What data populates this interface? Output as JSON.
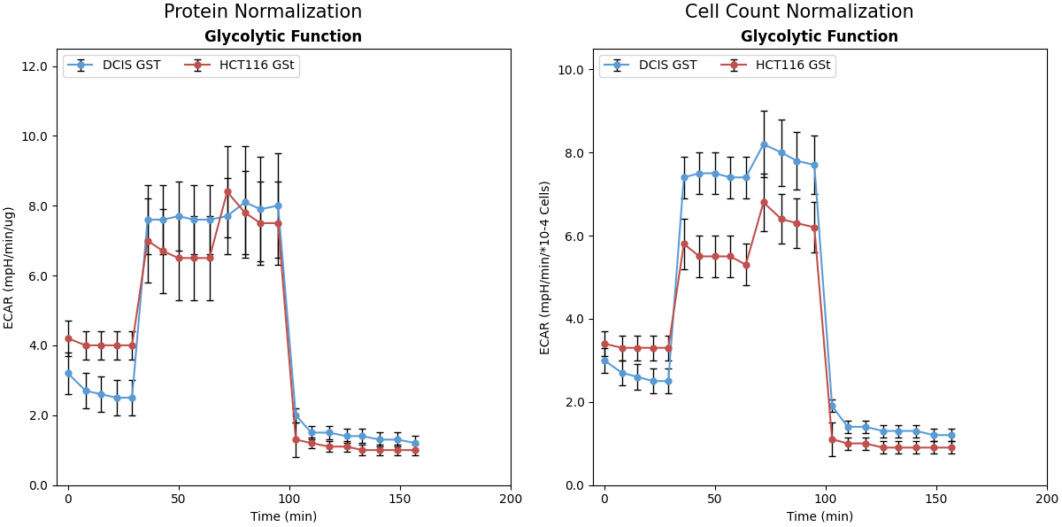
{
  "chart_data": [
    {
      "type": "line",
      "title": "Protein Normalization",
      "subtitle": "Glycolytic Function",
      "xlabel": "Time (min)",
      "ylabel": "ECAR (mpH/min/ug)",
      "x": [
        0,
        8,
        15,
        22,
        29,
        36,
        43,
        50,
        57,
        64,
        72,
        80,
        87,
        95,
        103,
        110,
        118,
        126,
        133,
        141,
        149,
        157
      ],
      "xlim": [
        -5,
        200
      ],
      "xticks": [
        0,
        50,
        100,
        150,
        200
      ],
      "ylim": [
        0,
        12.5
      ],
      "yticks": [
        {
          "value": 0,
          "label": "0.0"
        },
        {
          "value": 2,
          "label": "2.0"
        },
        {
          "value": 4,
          "label": "4.0"
        },
        {
          "value": 6,
          "label": "6.0"
        },
        {
          "value": 8,
          "label": "8.0"
        },
        {
          "value": 10,
          "label": "10.0"
        },
        {
          "value": 12,
          "label": "12.0"
        }
      ],
      "legend": "upper left",
      "series": [
        {
          "name": "DCIS GST",
          "color": "#5B9BD5",
          "marker": "o",
          "values": [
            3.2,
            2.7,
            2.6,
            2.5,
            2.5,
            7.6,
            7.6,
            7.7,
            7.6,
            7.6,
            7.7,
            8.1,
            7.9,
            8.0,
            2.0,
            1.5,
            1.5,
            1.4,
            1.4,
            1.3,
            1.3,
            1.2
          ],
          "yerr": [
            0.6,
            0.5,
            0.5,
            0.5,
            0.5,
            1.0,
            1.0,
            1.0,
            1.0,
            1.0,
            1.1,
            1.6,
            1.5,
            1.5,
            0.2,
            0.2,
            0.2,
            0.2,
            0.2,
            0.2,
            0.2,
            0.2
          ]
        },
        {
          "name": "HCT116 GSt",
          "color": "#C0504D",
          "marker": "o",
          "values": [
            4.2,
            4.0,
            4.0,
            4.0,
            4.0,
            7.0,
            6.7,
            6.5,
            6.5,
            6.5,
            8.4,
            7.8,
            7.5,
            7.5,
            1.3,
            1.2,
            1.1,
            1.1,
            1.0,
            1.0,
            1.0,
            1.0
          ],
          "yerr": [
            0.5,
            0.4,
            0.4,
            0.4,
            0.4,
            1.2,
            1.2,
            1.2,
            1.2,
            1.2,
            1.3,
            1.2,
            1.2,
            1.2,
            0.5,
            0.15,
            0.15,
            0.15,
            0.15,
            0.15,
            0.15,
            0.15
          ]
        }
      ]
    },
    {
      "type": "line",
      "title": "Cell Count Normalization",
      "subtitle": "Glycolytic Function",
      "xlabel": "Time (min)",
      "ylabel": "ECAR (mpH/min/*10-4 Cells)",
      "x": [
        0,
        8,
        15,
        22,
        29,
        36,
        43,
        50,
        57,
        64,
        72,
        80,
        87,
        95,
        103,
        110,
        118,
        126,
        133,
        141,
        149,
        157
      ],
      "xlim": [
        -5,
        200
      ],
      "xticks": [
        0,
        50,
        100,
        150,
        200
      ],
      "ylim": [
        0,
        10.5
      ],
      "yticks": [
        {
          "value": 0,
          "label": "0.0"
        },
        {
          "value": 2,
          "label": "2.0"
        },
        {
          "value": 4,
          "label": "4.0"
        },
        {
          "value": 6,
          "label": "6.0"
        },
        {
          "value": 8,
          "label": "8.0"
        },
        {
          "value": 10,
          "label": "10.0"
        }
      ],
      "legend": "upper left",
      "series": [
        {
          "name": "DCIS GST",
          "color": "#5B9BD5",
          "marker": "o",
          "values": [
            3.0,
            2.7,
            2.6,
            2.5,
            2.5,
            7.4,
            7.5,
            7.5,
            7.4,
            7.4,
            8.2,
            8.0,
            7.8,
            7.7,
            1.9,
            1.4,
            1.4,
            1.3,
            1.3,
            1.3,
            1.2,
            1.2
          ],
          "yerr": [
            0.3,
            0.3,
            0.3,
            0.3,
            0.3,
            0.5,
            0.5,
            0.5,
            0.5,
            0.5,
            0.8,
            0.8,
            0.7,
            0.7,
            0.15,
            0.15,
            0.15,
            0.15,
            0.15,
            0.15,
            0.15,
            0.15
          ]
        },
        {
          "name": "HCT116 GSt",
          "color": "#C0504D",
          "marker": "o",
          "values": [
            3.4,
            3.3,
            3.3,
            3.3,
            3.3,
            5.8,
            5.5,
            5.5,
            5.5,
            5.3,
            6.8,
            6.4,
            6.3,
            6.2,
            1.1,
            1.0,
            1.0,
            0.9,
            0.9,
            0.9,
            0.9,
            0.9
          ],
          "yerr": [
            0.3,
            0.3,
            0.3,
            0.3,
            0.3,
            0.6,
            0.5,
            0.5,
            0.5,
            0.5,
            0.7,
            0.6,
            0.6,
            0.6,
            0.4,
            0.15,
            0.15,
            0.15,
            0.15,
            0.15,
            0.15,
            0.15
          ]
        }
      ]
    }
  ]
}
